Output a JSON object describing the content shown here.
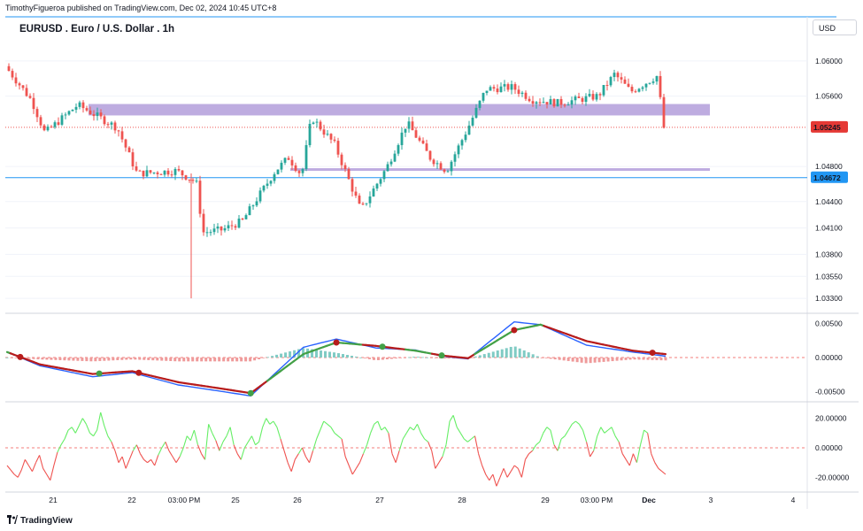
{
  "header": {
    "published": "TimothyFigueroa published on TradingView.com, Dec 02, 2024 10:45 UTC+8",
    "title": "EURUSD . Euro / U.S. Dollar . 1h",
    "currency": "USD"
  },
  "footer": {
    "logo_text": "TradingView"
  },
  "colors": {
    "up": "#26a69a",
    "down": "#ef5350",
    "zone": "#b39ddb",
    "support_line": "#2196f3",
    "price_label_bg": "#e53935",
    "support_label_bg": "#2196f3",
    "macd_line": "#2962ff",
    "signal_up": "#43a047",
    "signal_down": "#b71c1c",
    "osc_up": "#66ee66",
    "osc_down": "#ef5350"
  },
  "chart_data": [
    {
      "type": "candlestick",
      "title": "EURUSD . Euro / U.S. Dollar . 1h",
      "y_ticks": [
        "1.06000",
        "1.05600",
        "1.04800",
        "1.04400",
        "1.04100",
        "1.03800",
        "1.03550",
        "1.03300"
      ],
      "ylim": [
        1.0315,
        1.0625
      ],
      "x_ticks": [
        "21",
        "22",
        "03:00 PM",
        "25",
        "26",
        "27",
        "28",
        "29",
        "03:00 PM",
        "Dec",
        "3",
        "4"
      ],
      "current_price": "1.05245",
      "support_price": "1.04672",
      "zones": [
        {
          "from_x": 0.04,
          "to_x": 1.0,
          "low": 1.0538,
          "high": 1.0551
        },
        {
          "from_x": 0.43,
          "to_x": 1.0,
          "low": 1.0475,
          "high": 1.0478
        }
      ],
      "anchors": [
        {
          "t": 0.0,
          "price": 1.0594
        },
        {
          "t": 0.04,
          "price": 1.0555
        },
        {
          "t": 0.06,
          "price": 1.0518
        },
        {
          "t": 0.11,
          "price": 1.055
        },
        {
          "t": 0.17,
          "price": 1.0524
        },
        {
          "t": 0.2,
          "price": 1.0472
        },
        {
          "t": 0.26,
          "price": 1.0475
        },
        {
          "t": 0.29,
          "price": 1.0462
        },
        {
          "t": 0.3,
          "price": 1.0405
        },
        {
          "t": 0.33,
          "price": 1.0408
        },
        {
          "t": 0.36,
          "price": 1.0418
        },
        {
          "t": 0.41,
          "price": 1.0475
        },
        {
          "t": 0.43,
          "price": 1.049
        },
        {
          "t": 0.45,
          "price": 1.047
        },
        {
          "t": 0.465,
          "price": 1.0536
        },
        {
          "t": 0.5,
          "price": 1.0505
        },
        {
          "t": 0.54,
          "price": 1.043
        },
        {
          "t": 0.58,
          "price": 1.048
        },
        {
          "t": 0.61,
          "price": 1.053
        },
        {
          "t": 0.645,
          "price": 1.049
        },
        {
          "t": 0.67,
          "price": 1.0475
        },
        {
          "t": 0.7,
          "price": 1.052
        },
        {
          "t": 0.73,
          "price": 1.0568
        },
        {
          "t": 0.77,
          "price": 1.057
        },
        {
          "t": 0.8,
          "price": 1.0556
        },
        {
          "t": 0.84,
          "price": 1.0552
        },
        {
          "t": 0.9,
          "price": 1.056
        },
        {
          "t": 0.925,
          "price": 1.0585
        },
        {
          "t": 0.95,
          "price": 1.0565
        },
        {
          "t": 0.99,
          "price": 1.0583
        },
        {
          "t": 1.0,
          "price": 1.0524
        }
      ]
    },
    {
      "type": "line",
      "title": "",
      "y_ticks": [
        "0.00500",
        "0.00000",
        "-0.00500"
      ],
      "ylim": [
        -0.0062,
        0.0062
      ],
      "anchors": [
        {
          "t": 0.0,
          "macd": 0.0008,
          "signal": 0.0008
        },
        {
          "t": 0.05,
          "macd": -0.0012,
          "signal": -0.001
        },
        {
          "t": 0.13,
          "macd": -0.0028,
          "signal": -0.0024
        },
        {
          "t": 0.19,
          "macd": -0.0022,
          "signal": -0.002
        },
        {
          "t": 0.26,
          "macd": -0.004,
          "signal": -0.0036
        },
        {
          "t": 0.33,
          "macd": -0.005,
          "signal": -0.0046
        },
        {
          "t": 0.37,
          "macd": -0.0056,
          "signal": -0.0052
        },
        {
          "t": 0.45,
          "macd": 0.0015,
          "signal": 0.0005
        },
        {
          "t": 0.5,
          "macd": 0.0027,
          "signal": 0.0022
        },
        {
          "t": 0.56,
          "macd": 0.0014,
          "signal": 0.0017
        },
        {
          "t": 0.62,
          "macd": 0.0011,
          "signal": 0.001
        },
        {
          "t": 0.66,
          "macd": 0.0002,
          "signal": 0.0003
        },
        {
          "t": 0.7,
          "macd": -0.0002,
          "signal": -0.0001
        },
        {
          "t": 0.77,
          "macd": 0.0052,
          "signal": 0.004
        },
        {
          "t": 0.81,
          "macd": 0.0048,
          "signal": 0.0048
        },
        {
          "t": 0.88,
          "macd": 0.0018,
          "signal": 0.0024
        },
        {
          "t": 0.95,
          "macd": 0.0008,
          "signal": 0.001
        },
        {
          "t": 1.0,
          "macd": 0.0002,
          "signal": 0.0005
        }
      ],
      "crosses": [
        {
          "t": 0.02,
          "dir": "down"
        },
        {
          "t": 0.14,
          "dir": "up"
        },
        {
          "t": 0.2,
          "dir": "down"
        },
        {
          "t": 0.37,
          "dir": "up"
        },
        {
          "t": 0.5,
          "dir": "down"
        },
        {
          "t": 0.57,
          "dir": "up"
        },
        {
          "t": 0.66,
          "dir": "up"
        },
        {
          "t": 0.77,
          "dir": "down"
        },
        {
          "t": 0.98,
          "dir": "down"
        }
      ]
    },
    {
      "type": "line",
      "title": "",
      "y_ticks": [
        "20.00000",
        "0.00000",
        "-20.00000"
      ],
      "ylim": [
        -30,
        30
      ],
      "values": [
        -12,
        -15,
        -18,
        -20,
        -15,
        -8,
        -12,
        -16,
        -10,
        -5,
        -14,
        -18,
        -22,
        -12,
        -3,
        2,
        6,
        12,
        14,
        10,
        15,
        20,
        16,
        10,
        8,
        12,
        24,
        15,
        8,
        4,
        -2,
        -10,
        -6,
        -14,
        -8,
        -2,
        2,
        -4,
        -8,
        -10,
        -8,
        -12,
        -5,
        0,
        4,
        -2,
        -6,
        -10,
        -6,
        0,
        8,
        5,
        12,
        2,
        -4,
        -8,
        16,
        10,
        5,
        -2,
        4,
        8,
        14,
        2,
        -4,
        -8,
        0,
        4,
        8,
        2,
        4,
        14,
        20,
        16,
        18,
        14,
        6,
        -2,
        -10,
        -16,
        -8,
        -4,
        0,
        -6,
        -10,
        -2,
        6,
        12,
        18,
        16,
        14,
        10,
        8,
        6,
        -6,
        -12,
        -18,
        -14,
        -10,
        -4,
        2,
        10,
        16,
        18,
        12,
        14,
        10,
        -4,
        -10,
        -2,
        6,
        10,
        14,
        12,
        16,
        10,
        6,
        4,
        -2,
        -14,
        -10,
        -6,
        2,
        18,
        22,
        14,
        10,
        6,
        4,
        6,
        8,
        -4,
        -12,
        -18,
        -22,
        -18,
        -26,
        -20,
        -14,
        -20,
        -16,
        -12,
        -14,
        -20,
        -8,
        -4,
        -2,
        2,
        4,
        10,
        14,
        12,
        2,
        -2,
        6,
        8,
        12,
        16,
        18,
        16,
        12,
        4,
        -6,
        -2,
        8,
        14,
        10,
        12,
        14,
        8,
        4,
        -4,
        -8,
        -12,
        -4,
        -10,
        2,
        12,
        10,
        -4,
        -10,
        -14,
        -16,
        -18
      ],
      "up_threshold": 0
    }
  ]
}
